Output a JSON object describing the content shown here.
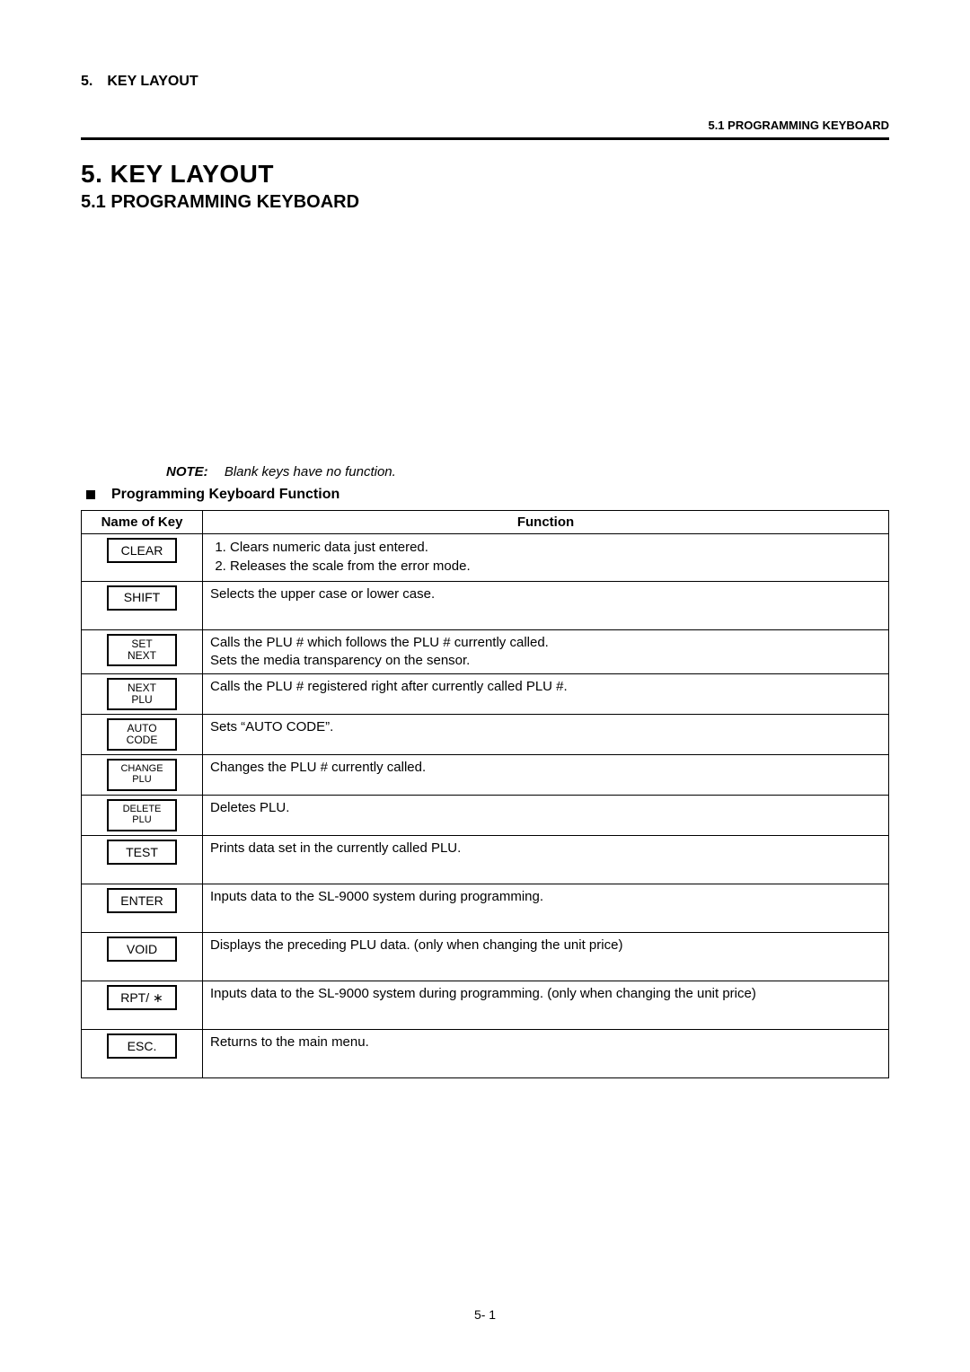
{
  "header": {
    "section_label": "5. KEY LAYOUT",
    "subsection_label": "5.1 PROGRAMMING KEYBOARD"
  },
  "titles": {
    "section": "5.  KEY LAYOUT",
    "subsection": "5.1  PROGRAMMING KEYBOARD"
  },
  "note": {
    "label": "NOTE:",
    "text": "Blank keys have no function."
  },
  "table_heading": "Programming Keyboard Function",
  "table": {
    "columns": [
      "Name of Key",
      "Function"
    ],
    "rows": [
      {
        "key_lines": [
          "CLEAR"
        ],
        "key_size": "normal",
        "function_type": "list",
        "function_items": [
          "Clears numeric data just entered.",
          "Releases the scale from the error mode."
        ]
      },
      {
        "key_lines": [
          "SHIFT"
        ],
        "key_size": "normal",
        "function_type": "text",
        "function_text": "Selects the upper case or lower case.",
        "tall": true
      },
      {
        "key_lines": [
          "SET",
          "NEXT"
        ],
        "key_size": "small",
        "function_type": "multiline",
        "function_lines": [
          "Calls the PLU # which follows the PLU # currently called.",
          "Sets the media transparency on the sensor."
        ]
      },
      {
        "key_lines": [
          "NEXT",
          "PLU"
        ],
        "key_size": "small",
        "function_type": "text",
        "function_text": "Calls the PLU # registered right after currently called PLU #."
      },
      {
        "key_lines": [
          "AUTO",
          "CODE"
        ],
        "key_size": "small",
        "function_type": "text",
        "function_text": "Sets “AUTO CODE”."
      },
      {
        "key_lines": [
          "CHANGE",
          "PLU"
        ],
        "key_size": "xsmall",
        "function_type": "text",
        "function_text": "Changes the PLU # currently called."
      },
      {
        "key_lines": [
          "DELETE",
          "PLU"
        ],
        "key_size": "xsmall",
        "function_type": "text",
        "function_text": "Deletes PLU."
      },
      {
        "key_lines": [
          "TEST"
        ],
        "key_size": "normal",
        "function_type": "text",
        "function_text": "Prints data set in the currently called PLU.",
        "tall": true
      },
      {
        "key_lines": [
          "ENTER"
        ],
        "key_size": "normal",
        "function_type": "text",
        "function_text": "Inputs data to the SL-9000 system during programming.",
        "tall": true
      },
      {
        "key_lines": [
          "VOID"
        ],
        "key_size": "normal",
        "function_type": "text",
        "function_text": "Displays the preceding PLU data. (only when changing the unit price)",
        "tall": true
      },
      {
        "key_lines": [
          "RPT/ ∗"
        ],
        "key_size": "normal",
        "function_type": "text",
        "function_text": "Inputs data to the SL-9000 system during programming. (only when changing the unit price)",
        "tall": true
      },
      {
        "key_lines": [
          "ESC."
        ],
        "key_size": "normal",
        "function_type": "text",
        "function_text": "Returns to the main menu.",
        "tall": true
      }
    ]
  },
  "page_number": "5- 1",
  "style": {
    "font_sizes": {
      "body": 15,
      "title": 28,
      "subtitle": 20,
      "header_small": 13,
      "keycap": 14,
      "keycap_small": 12
    },
    "colors": {
      "text": "#000000",
      "background": "#ffffff",
      "border": "#000000"
    }
  }
}
